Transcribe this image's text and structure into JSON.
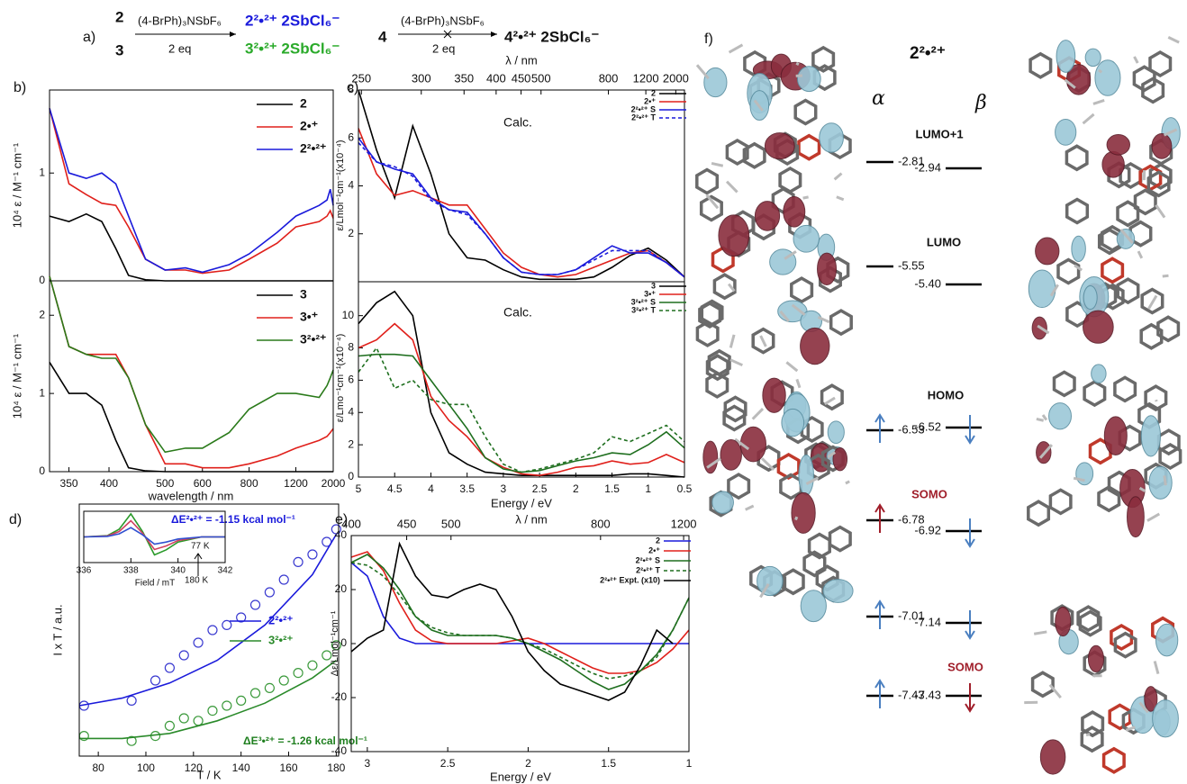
{
  "scheme": {
    "panel": "a)",
    "left_top": "2",
    "left_bottom": "3",
    "reagent_1": "(4-BrPh)₃NSbF₆",
    "eq_1": "2 eq",
    "product_2": "2²•²⁺ 2SbCl₆⁻",
    "product_3": "3²•²⁺ 2SbCl₆⁻",
    "start_4": "4",
    "reagent_2": "(4-BrPh)₃NSbF₆",
    "eq_2": "2 eq",
    "product_4": "4²•²⁺ 2SbCl₆⁻"
  },
  "chart_data": [
    {
      "type": "line",
      "panel": "b)",
      "y_label": "10⁴ ε / M⁻¹ cm⁻¹",
      "xscale": "reciprocal",
      "xlim": [
        330,
        2000
      ],
      "ylim": [
        0,
        1.77
      ],
      "yticks": [
        0,
        1
      ],
      "x": [
        330,
        350,
        370,
        390,
        410,
        430,
        460,
        500,
        550,
        600,
        700,
        800,
        1000,
        1200,
        1600,
        1800,
        1900,
        2000
      ],
      "series": [
        {
          "name": "2",
          "color": "#000000",
          "values": [
            0.6,
            0.55,
            0.62,
            0.55,
            0.3,
            0.05,
            0.01,
            0,
            0,
            0,
            0,
            0,
            0,
            0,
            0,
            0,
            0,
            0
          ]
        },
        {
          "name": "2•⁺",
          "color": "#e0201b",
          "values": [
            1.6,
            0.9,
            0.8,
            0.72,
            0.7,
            0.5,
            0.2,
            0.1,
            0.1,
            0.07,
            0.1,
            0.2,
            0.35,
            0.5,
            0.55,
            0.6,
            0.65,
            0.58
          ]
        },
        {
          "name": "2²•²⁺",
          "color": "#1a1adb",
          "values": [
            1.6,
            1.0,
            0.95,
            1.0,
            0.9,
            0.6,
            0.2,
            0.1,
            0.12,
            0.08,
            0.15,
            0.25,
            0.45,
            0.6,
            0.7,
            0.75,
            0.85,
            0.7
          ]
        }
      ]
    },
    {
      "type": "line",
      "y_label": "10⁴ ε / M⁻¹ cm⁻¹",
      "x_label": "wavelength / nm",
      "xscale": "reciprocal",
      "xlim": [
        330,
        2000
      ],
      "ylim": [
        0,
        2.44
      ],
      "yticks": [
        0,
        1,
        2
      ],
      "xticks": [
        350,
        400,
        500,
        600,
        800,
        1200,
        2000
      ],
      "x": [
        330,
        350,
        370,
        390,
        410,
        430,
        460,
        500,
        550,
        600,
        700,
        800,
        1000,
        1200,
        1600,
        1800,
        1900,
        2000
      ],
      "series": [
        {
          "name": "3",
          "color": "#000000",
          "values": [
            1.4,
            1.0,
            1.0,
            0.85,
            0.4,
            0.05,
            0.01,
            0,
            0,
            0,
            0,
            0,
            0,
            0,
            0,
            0,
            0,
            0
          ]
        },
        {
          "name": "3•⁺",
          "color": "#e0201b",
          "values": [
            2.5,
            1.6,
            1.5,
            1.5,
            1.5,
            1.2,
            0.6,
            0.1,
            0.1,
            0.05,
            0.05,
            0.1,
            0.2,
            0.3,
            0.4,
            0.45,
            0.5,
            0.55
          ]
        },
        {
          "name": "3²•²⁺",
          "color": "#2a7a1a",
          "values": [
            2.5,
            1.6,
            1.5,
            1.45,
            1.45,
            1.2,
            0.6,
            0.25,
            0.3,
            0.3,
            0.5,
            0.8,
            1.0,
            1.0,
            0.95,
            1.1,
            1.2,
            1.3
          ]
        }
      ]
    },
    {
      "type": "line",
      "panel": "c)",
      "y_label": "ε/Lmol⁻¹cm⁻¹(x10⁻⁴)",
      "top_label": "λ / nm",
      "annotation": "Calc.",
      "xlim": [
        5,
        0.5
      ],
      "ylim": [
        0,
        8
      ],
      "yticks": [
        2,
        4,
        6,
        8
      ],
      "top_ticks": [
        250,
        300,
        350,
        400,
        450,
        500,
        800,
        1200,
        2000
      ],
      "x": [
        5,
        4.75,
        4.5,
        4.25,
        4,
        3.75,
        3.5,
        3.25,
        3,
        2.75,
        2.5,
        2.25,
        2,
        1.75,
        1.5,
        1.25,
        1,
        0.75,
        0.5
      ],
      "series": [
        {
          "name": "2",
          "color": "#000000",
          "values": [
            8,
            5.5,
            3.5,
            6.5,
            4.5,
            2.0,
            1.0,
            0.9,
            0.5,
            0.2,
            0.1,
            0.1,
            0.1,
            0.2,
            0.6,
            1.1,
            1.4,
            0.9,
            0.2
          ]
        },
        {
          "name": "2•⁺",
          "color": "#e0201b",
          "values": [
            6.4,
            4.5,
            3.6,
            3.8,
            3.5,
            3.2,
            3.2,
            2.2,
            1.2,
            0.6,
            0.3,
            0.2,
            0.3,
            0.6,
            0.9,
            1.2,
            1.3,
            0.8,
            0.2
          ]
        },
        {
          "name": "2²•²⁺ S",
          "color": "#1a1adb",
          "values": [
            6,
            5,
            4.7,
            4.5,
            3.5,
            3.0,
            2.9,
            2.0,
            1.0,
            0.4,
            0.3,
            0.3,
            0.5,
            1.0,
            1.5,
            1.2,
            1.2,
            0.8,
            0.2
          ]
        },
        {
          "name": "2²•²⁺ T",
          "color": "#1a1adb",
          "dash": true,
          "values": [
            5.8,
            5,
            4.8,
            4.4,
            3.4,
            3.0,
            2.8,
            2.0,
            1.0,
            0.4,
            0.3,
            0.3,
            0.5,
            0.9,
            1.3,
            1.3,
            1.3,
            0.8,
            0.2
          ]
        }
      ]
    },
    {
      "type": "line",
      "y_label": "ε/Lmo⁻¹cm⁻¹(x10⁻⁴)",
      "x_label": "Energy / eV",
      "annotation": "Calc.",
      "xlim": [
        5,
        0.5
      ],
      "ylim": [
        0,
        12.1
      ],
      "yticks": [
        0,
        2,
        4,
        6,
        8,
        10
      ],
      "xticks": [
        5,
        4.5,
        4,
        3.5,
        3,
        2.5,
        2,
        1.5,
        1,
        0.5
      ],
      "x": [
        5,
        4.75,
        4.5,
        4.25,
        4,
        3.75,
        3.5,
        3.25,
        3,
        2.75,
        2.5,
        2.25,
        2,
        1.75,
        1.5,
        1.25,
        1,
        0.75,
        0.5
      ],
      "series": [
        {
          "name": "3",
          "color": "#000000",
          "values": [
            9.5,
            10.8,
            11.5,
            10,
            4,
            1.5,
            0.8,
            0.3,
            0.2,
            0.1,
            0.1,
            0.1,
            0.1,
            0.1,
            0.1,
            0.2,
            0.2,
            0.1,
            0
          ]
        },
        {
          "name": "3•⁺",
          "color": "#e0201b",
          "values": [
            8,
            8.5,
            9.5,
            8.5,
            5,
            3.5,
            2.5,
            1.2,
            0.6,
            0.2,
            0.1,
            0.3,
            0.6,
            0.7,
            1.0,
            0.8,
            0.9,
            1.4,
            0.9
          ]
        },
        {
          "name": "3²•²⁺ S",
          "color": "#1f6f1f",
          "values": [
            7.5,
            7.6,
            7.6,
            7.5,
            6,
            4.5,
            3.0,
            1.2,
            0.5,
            0.3,
            0.4,
            0.7,
            1.0,
            1.2,
            1.5,
            1.4,
            2.0,
            2.8,
            1.8
          ]
        },
        {
          "name": "3²•²⁺ T",
          "color": "#1f6f1f",
          "dash": true,
          "values": [
            6.5,
            8,
            5.5,
            6,
            4.8,
            4.5,
            4.5,
            2.5,
            0.8,
            0.3,
            0.5,
            0.8,
            1.1,
            1.5,
            2.5,
            2.2,
            2.7,
            3.2,
            2.2
          ]
        }
      ]
    },
    {
      "type": "scatter",
      "panel": "d)",
      "y_label": "I x T / a.u.",
      "x_label": "T / K",
      "xlim": [
        72,
        181
      ],
      "ylim": [
        0,
        1
      ],
      "xticks": [
        80,
        100,
        120,
        140,
        160,
        180
      ],
      "annotations": [
        "ΔE²•²⁺ = -1.15 kcal mol⁻¹",
        "ΔE³•²⁺ = -1.26 kcal mol⁻¹"
      ],
      "x": [
        74,
        94,
        104,
        110,
        116,
        122,
        128,
        134,
        140,
        146,
        152,
        158,
        164,
        170,
        176,
        180
      ],
      "series": [
        {
          "color": "#3a3ad0",
          "values": [
            0.2,
            0.22,
            0.3,
            0.35,
            0.4,
            0.45,
            0.5,
            0.52,
            0.55,
            0.6,
            0.65,
            0.7,
            0.77,
            0.8,
            0.85,
            0.9
          ]
        },
        {
          "color": "#3c9a3c",
          "values": [
            0.08,
            0.06,
            0.08,
            0.12,
            0.15,
            0.14,
            0.18,
            0.2,
            0.22,
            0.25,
            0.27,
            0.3,
            0.33,
            0.36,
            0.4,
            0.44
          ]
        }
      ],
      "fit_x": [
        72,
        90,
        110,
        130,
        150,
        170,
        180
      ],
      "fits": [
        {
          "name": "2²•²⁺",
          "color": "#1a1adb",
          "values": [
            0.2,
            0.23,
            0.29,
            0.38,
            0.52,
            0.72,
            0.88
          ]
        },
        {
          "name": "3²•²⁺",
          "color": "#2a8a2a",
          "values": [
            0.07,
            0.07,
            0.09,
            0.14,
            0.21,
            0.31,
            0.38
          ]
        }
      ]
    },
    {
      "type": "line",
      "x_label": "Field / mT",
      "xlim": [
        336,
        342
      ],
      "ylim": [
        -1,
        1
      ],
      "xticks": [
        336,
        338,
        340,
        342
      ],
      "annotations": [
        "77 K",
        "180 K"
      ],
      "x": [
        336,
        337,
        337.5,
        338,
        338.5,
        339,
        339.5,
        340,
        341,
        342
      ],
      "series": [
        {
          "color": "#2a9a2a",
          "values": [
            0,
            0.05,
            0.3,
            0.9,
            0.2,
            -0.7,
            -0.5,
            -0.2,
            0,
            0
          ]
        },
        {
          "color": "#d04060",
          "values": [
            0,
            0.04,
            0.21,
            0.63,
            0.14,
            -0.49,
            -0.35,
            -0.14,
            0,
            0
          ]
        },
        {
          "color": "#3050d0",
          "values": [
            0,
            0.02,
            0.12,
            0.36,
            0.08,
            -0.28,
            -0.2,
            -0.08,
            0,
            0
          ]
        }
      ]
    },
    {
      "type": "line",
      "panel": "e)",
      "y_label": "Δε/Lmol⁻¹cm⁻¹",
      "x_label": "Energy / eV",
      "top_label": "λ / nm",
      "xlim": [
        3.1,
        1
      ],
      "ylim": [
        -40,
        40
      ],
      "yticks": [
        -40,
        -20,
        0,
        20,
        40
      ],
      "xticks": [
        3,
        2.5,
        2,
        1.5,
        1
      ],
      "top_ticks": [
        400,
        450,
        500,
        800,
        1200
      ],
      "x": [
        3.1,
        3.0,
        2.9,
        2.8,
        2.7,
        2.6,
        2.5,
        2.4,
        2.3,
        2.2,
        2.1,
        2.0,
        1.9,
        1.8,
        1.7,
        1.6,
        1.5,
        1.4,
        1.3,
        1.2,
        1.1,
        1.0
      ],
      "series": [
        {
          "name": "2",
          "color": "#1a1adb",
          "values": [
            30,
            25,
            10,
            2,
            0,
            0,
            0,
            0,
            0,
            0,
            0,
            0,
            0,
            0,
            0,
            0,
            0,
            0,
            0,
            0,
            0,
            0
          ]
        },
        {
          "name": "2•⁺",
          "color": "#e0201b",
          "values": [
            32,
            34,
            27,
            15,
            5,
            1,
            0,
            0,
            0,
            0,
            1,
            2,
            0,
            -3,
            -6,
            -9,
            -11,
            -11,
            -10,
            -7,
            -2,
            5
          ]
        },
        {
          "name": "2²•²⁺ S",
          "color": "#1f6f1f",
          "values": [
            30,
            33,
            28,
            20,
            10,
            5,
            3,
            3,
            3,
            3,
            2,
            0,
            -3,
            -6,
            -10,
            -14,
            -17,
            -15,
            -10,
            -4,
            5,
            17
          ]
        },
        {
          "name": "2²•²⁺ T",
          "color": "#1f6f1f",
          "dash": true,
          "values": [
            30,
            29,
            25,
            18,
            10,
            6,
            4,
            3,
            3,
            3,
            2,
            0,
            -2,
            -5,
            -8,
            -11,
            -13,
            -12,
            -10,
            -5,
            5,
            17
          ]
        },
        {
          "name": "2²•²⁺ Expt. (x10)",
          "color": "#000000",
          "values": [
            -3,
            2,
            5,
            37,
            25,
            18,
            17,
            20,
            22,
            20,
            10,
            -3,
            -10,
            -15,
            -17,
            -19,
            -21,
            -18,
            -8,
            5,
            0,
            null
          ]
        }
      ]
    }
  ],
  "orbitals": {
    "panel": "f)",
    "title": "2²•²⁺",
    "alpha": "α",
    "beta": "β",
    "levels": [
      {
        "name": "LUMO+1",
        "alpha": "-2.81",
        "beta": "-2.94"
      },
      {
        "name": "LUMO",
        "alpha": "-5.55",
        "beta": "-5.40"
      },
      {
        "name": "HOMO",
        "alpha": "-6.53",
        "beta": "-6.52"
      },
      {
        "name": "SOMO",
        "alpha": "-6.78",
        "beta": "-6.92"
      },
      {
        "alpha": "-7.01",
        "beta": "-7.14"
      },
      {
        "name": "SOMO",
        "alpha": "-7.43",
        "beta": "-7.43"
      }
    ]
  }
}
